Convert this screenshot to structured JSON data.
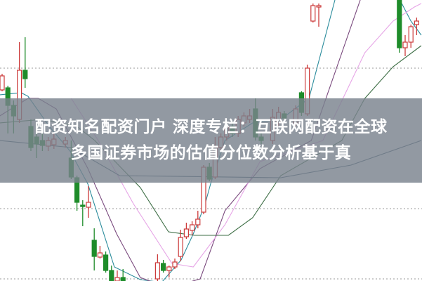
{
  "title": {
    "line1": "配资知名配资门户 深度专栏：互联网配资在全球",
    "line2": "多国证券市场的估值分位数分析基于真"
  },
  "chart_data": {
    "type": "candlestick",
    "title": "",
    "xlabel": "",
    "ylabel": "",
    "grid": "horizontal dotted",
    "colors": {
      "up": "#cc3a3a",
      "down": "#1e8c2a"
    },
    "candles_format": [
      "index",
      "open",
      "high",
      "low",
      "close"
    ],
    "candles": [
      [
        0,
        272,
        295,
        270,
        292
      ],
      [
        1,
        275,
        278,
        210,
        250
      ],
      [
        2,
        250,
        257,
        210,
        235
      ],
      [
        3,
        230,
        340,
        225,
        300
      ],
      [
        4,
        300,
        347,
        275,
        288
      ],
      [
        5,
        220,
        230,
        185,
        190
      ],
      [
        6,
        205,
        215,
        175,
        195
      ],
      [
        7,
        200,
        210,
        185,
        193
      ],
      [
        8,
        192,
        205,
        185,
        200
      ],
      [
        9,
        194,
        210,
        188,
        202
      ],
      [
        11,
        195,
        205,
        190,
        200
      ],
      [
        12,
        175,
        200,
        145,
        148
      ],
      [
        13,
        147,
        150,
        100,
        112
      ],
      [
        14,
        108,
        115,
        78,
        106
      ],
      [
        15,
        105,
        135,
        90,
        112
      ],
      [
        16,
        58,
        75,
        15,
        35
      ],
      [
        17,
        34,
        50,
        32,
        40
      ],
      [
        18,
        37,
        42,
        12,
        15
      ],
      [
        19,
        15,
        22,
        -5,
        0
      ],
      [
        20,
        0,
        15,
        -5,
        5
      ],
      [
        21,
        5,
        17,
        -5,
        0
      ],
      [
        27,
        3,
        38,
        -5,
        26
      ],
      [
        28,
        25,
        30,
        12,
        15
      ],
      [
        29,
        15,
        22,
        5,
        20
      ],
      [
        30,
        20,
        32,
        17,
        27
      ],
      [
        31,
        35,
        73,
        28,
        62
      ],
      [
        32,
        63,
        83,
        60,
        74
      ],
      [
        33,
        72,
        85,
        65,
        80
      ],
      [
        34,
        80,
        100,
        75,
        88
      ],
      [
        35,
        98,
        165,
        95,
        162
      ],
      [
        36,
        162,
        168,
        142,
        145
      ],
      [
        37,
        148,
        205,
        145,
        190
      ],
      [
        38,
        190,
        210,
        185,
        205
      ],
      [
        39,
        205,
        225,
        200,
        220
      ],
      [
        40,
        220,
        228,
        205,
        210
      ],
      [
        41,
        210,
        235,
        205,
        230
      ],
      [
        42,
        225,
        240,
        220,
        235
      ],
      [
        43,
        230,
        245,
        225,
        235
      ],
      [
        44,
        245,
        260,
        200,
        205
      ],
      [
        45,
        205,
        210,
        195,
        200
      ],
      [
        47,
        200,
        245,
        195,
        233
      ],
      [
        48,
        225,
        248,
        220,
        240
      ],
      [
        49,
        238,
        242,
        228,
        232
      ],
      [
        51,
        225,
        250,
        220,
        245
      ],
      [
        52,
        268,
        270,
        235,
        240
      ],
      [
        53,
        238,
        308,
        235,
        303
      ],
      [
        54,
        370,
        395,
        368,
        392
      ],
      [
        55,
        390,
        395,
        362,
        392
      ],
      [
        69,
        400,
        405,
        325,
        332
      ],
      [
        70,
        332,
        350,
        320,
        340
      ],
      [
        71,
        340,
        365,
        332,
        362
      ],
      [
        72,
        365,
        375,
        350,
        370
      ]
    ],
    "moving_averages": [
      {
        "color": "#2b8c9c",
        "points": [
          [
            -0.4,
            265
          ],
          [
            3.3,
            268
          ],
          [
            4.5,
            263
          ],
          [
            8.2,
            220
          ],
          [
            11.8,
            185
          ],
          [
            14.9,
            138
          ],
          [
            19.5,
            20
          ],
          [
            24,
            2
          ],
          [
            27.7,
            -2
          ],
          [
            31.1,
            30
          ],
          [
            33.2,
            67
          ],
          [
            35.2,
            108
          ],
          [
            36.2,
            138
          ],
          [
            38.7,
            200
          ],
          [
            43.5,
            225
          ],
          [
            48.4,
            230
          ],
          [
            53.3,
            260
          ],
          [
            57.8,
            400
          ],
          [
            63,
            480
          ],
          [
            67.9,
            430
          ],
          [
            69.1,
            400
          ],
          [
            71,
            370
          ],
          [
            72.8,
            350
          ]
        ]
      },
      {
        "color": "#7a4a7e",
        "points": [
          [
            -0.4,
            235
          ],
          [
            4.5,
            260
          ],
          [
            6.3,
            260
          ],
          [
            9.4,
            245
          ],
          [
            14.9,
            160
          ],
          [
            19.9,
            67
          ],
          [
            24,
            5
          ],
          [
            28.9,
            -10
          ],
          [
            34.4,
            3
          ],
          [
            38.7,
            100
          ],
          [
            44.8,
            160
          ],
          [
            53.7,
            200
          ],
          [
            62.2,
            400
          ],
          [
            66,
            460
          ]
        ]
      },
      {
        "color": "#e6a4e6",
        "points": [
          [
            12,
            260
          ],
          [
            16.7,
            200
          ],
          [
            22.8,
            110
          ],
          [
            29.5,
            25
          ],
          [
            33.2,
            20
          ],
          [
            38.7,
            80
          ],
          [
            44.8,
            170
          ],
          [
            55.7,
            200
          ],
          [
            63,
            325
          ],
          [
            67.9,
            370
          ],
          [
            71.6,
            390
          ],
          [
            72.8,
            395
          ]
        ]
      },
      {
        "color": "#3d6e45",
        "points": [
          [
            -0.4,
            225
          ],
          [
            7,
            230
          ],
          [
            13,
            220
          ],
          [
            16.1,
            200
          ],
          [
            24,
            133
          ],
          [
            28.9,
            70
          ],
          [
            33.4,
            65
          ],
          [
            39.3,
            65
          ],
          [
            43.5,
            90
          ],
          [
            48.4,
            150
          ],
          [
            59,
            200
          ],
          [
            63,
            260
          ],
          [
            67.9,
            305
          ],
          [
            72.8,
            335
          ]
        ]
      },
      {
        "color": "#3e5c6e",
        "points": [
          [
            -0.4,
            200
          ],
          [
            12,
            190
          ],
          [
            20.4,
            150
          ],
          [
            48.4,
            147
          ],
          [
            60.6,
            165
          ],
          [
            72.8,
            200
          ]
        ]
      }
    ],
    "gridlines": [
      303,
      103,
      3
    ]
  }
}
